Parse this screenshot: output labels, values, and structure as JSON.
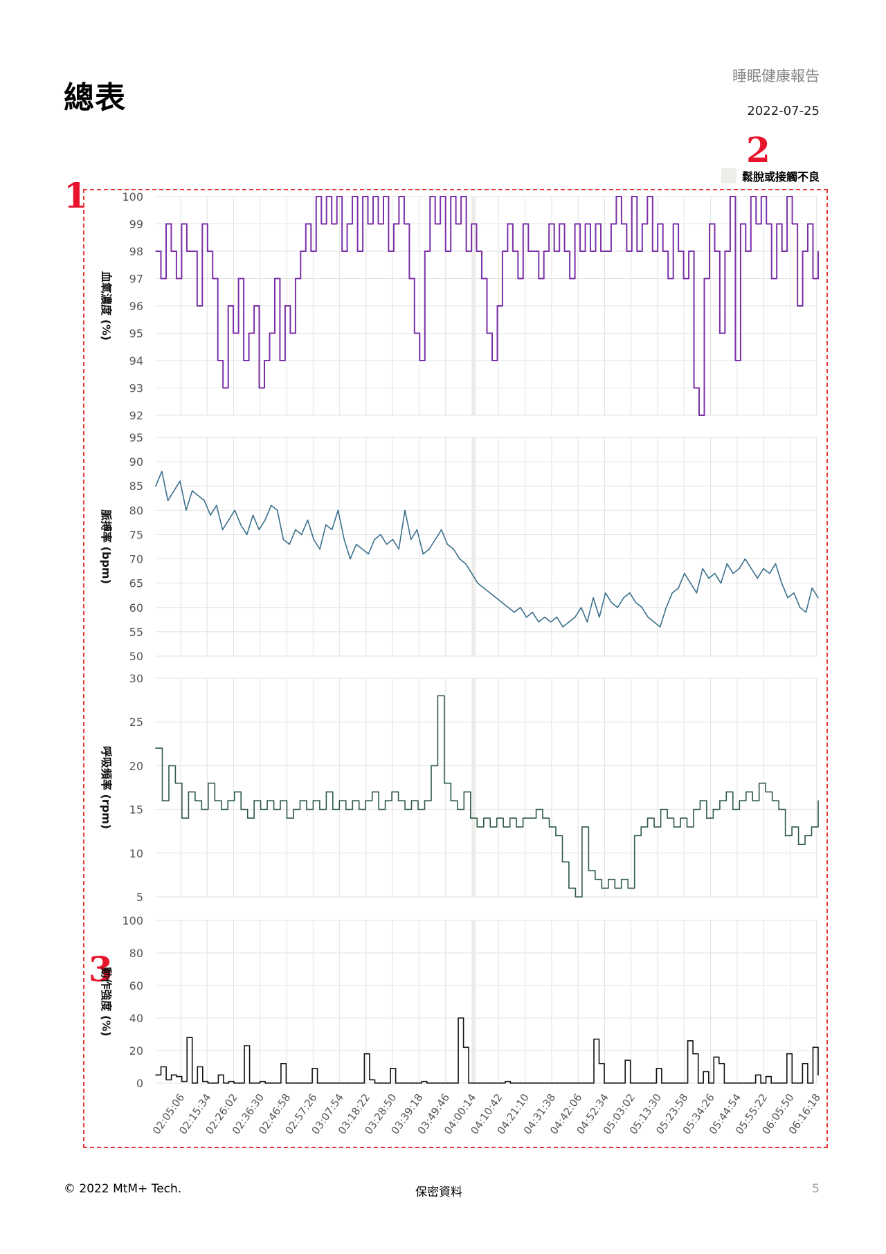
{
  "header": {
    "title": "總表",
    "report_name": "睡眠健康報告",
    "date": "2022-07-25"
  },
  "markers": [
    "1",
    "2",
    "3"
  ],
  "legend": {
    "label": "鬆脫或接觸不良",
    "color": "#efedea"
  },
  "colors": {
    "spo2": "#7b2fa8",
    "pulse": "#3a6f8a",
    "resp": "#2d5a45",
    "motion": "#111111",
    "frame": "#e53935",
    "marker": "#e8142c"
  },
  "footer": {
    "copyright": "© 2022 MtM+ Tech.",
    "confidential": "保密資料",
    "page_number": "5"
  },
  "chart_data": [
    {
      "type": "line",
      "ylabel": "血氧濃度 (%)",
      "ylim": [
        92,
        100
      ],
      "yticks": [
        92,
        93,
        94,
        95,
        96,
        97,
        98,
        99,
        100
      ],
      "series": [
        {
          "values": [
            98,
            97,
            99,
            98,
            97,
            99,
            98,
            98,
            96,
            99,
            98,
            97,
            94,
            93,
            96,
            95,
            97,
            94,
            95,
            96,
            93,
            94,
            95,
            97,
            94,
            96,
            95,
            97,
            98,
            99,
            98,
            100,
            99,
            100,
            99,
            100,
            98,
            99,
            100,
            98,
            100,
            99,
            100,
            99,
            100,
            98,
            99,
            100,
            99,
            97,
            95,
            94,
            98,
            100,
            99,
            100,
            98,
            100,
            99,
            100,
            98,
            99,
            98,
            97,
            95,
            94,
            96,
            98,
            99,
            98,
            97,
            99,
            98,
            98,
            97,
            98,
            99,
            98,
            99,
            98,
            97,
            99,
            98,
            99,
            98,
            99,
            98,
            98,
            99,
            100,
            99,
            98,
            100,
            98,
            99,
            100,
            98,
            99,
            98,
            97,
            99,
            98,
            97,
            98,
            93,
            92,
            97,
            99,
            98,
            95,
            98,
            100,
            94,
            99,
            98,
            100,
            99,
            100,
            99,
            97,
            99,
            98,
            100,
            99,
            96,
            98,
            99,
            97,
            98
          ]
        }
      ]
    },
    {
      "type": "line",
      "ylabel": "脈搏率 (bpm)",
      "ylim": [
        50,
        95
      ],
      "yticks": [
        50,
        55,
        60,
        65,
        70,
        75,
        80,
        85,
        90,
        95
      ],
      "series": [
        {
          "values": [
            85,
            88,
            82,
            84,
            86,
            80,
            84,
            83,
            82,
            79,
            81,
            76,
            78,
            80,
            77,
            75,
            79,
            76,
            78,
            81,
            80,
            74,
            73,
            76,
            75,
            78,
            74,
            72,
            77,
            76,
            80,
            74,
            70,
            73,
            72,
            71,
            74,
            75,
            73,
            74,
            72,
            80,
            74,
            76,
            71,
            72,
            74,
            76,
            73,
            72,
            70,
            69,
            67,
            65,
            64,
            63,
            62,
            61,
            60,
            59,
            60,
            58,
            59,
            57,
            58,
            57,
            58,
            56,
            57,
            58,
            60,
            57,
            62,
            58,
            63,
            61,
            60,
            62,
            63,
            61,
            60,
            58,
            57,
            56,
            60,
            63,
            64,
            67,
            65,
            63,
            68,
            66,
            67,
            65,
            69,
            67,
            68,
            70,
            68,
            66,
            68,
            67,
            69,
            65,
            62,
            63,
            60,
            59,
            64,
            62
          ]
        }
      ]
    },
    {
      "type": "line",
      "ylabel": "呼吸頻率 (rpm)",
      "ylim": [
        5,
        30
      ],
      "yticks": [
        5,
        10,
        15,
        20,
        25,
        30
      ],
      "series": [
        {
          "values": [
            22,
            16,
            20,
            18,
            14,
            17,
            16,
            15,
            18,
            16,
            15,
            16,
            17,
            15,
            14,
            16,
            15,
            16,
            15,
            16,
            14,
            15,
            16,
            15,
            16,
            15,
            17,
            15,
            16,
            15,
            16,
            15,
            16,
            17,
            15,
            16,
            17,
            16,
            15,
            16,
            15,
            16,
            20,
            28,
            18,
            16,
            15,
            17,
            14,
            13,
            14,
            13,
            14,
            13,
            14,
            13,
            14,
            14,
            15,
            14,
            13,
            12,
            9,
            6,
            5,
            13,
            8,
            7,
            6,
            7,
            6,
            7,
            6,
            12,
            13,
            14,
            13,
            15,
            14,
            13,
            14,
            13,
            15,
            16,
            14,
            15,
            16,
            17,
            15,
            16,
            17,
            16,
            18,
            17,
            16,
            15,
            12,
            13,
            11,
            12,
            13,
            16
          ]
        }
      ]
    },
    {
      "type": "line",
      "ylabel": "動作強度 (%)",
      "ylim": [
        0,
        100
      ],
      "yticks": [
        0,
        20,
        40,
        60,
        80,
        100
      ],
      "xlabels": [
        "02:05:06",
        "02:15:34",
        "02:26:02",
        "02:36:30",
        "02:46:58",
        "02:57:26",
        "03:07:54",
        "03:18:22",
        "03:28:50",
        "03:39:18",
        "03:49:46",
        "04:00:14",
        "04:10:42",
        "04:21:10",
        "04:31:38",
        "04:42:06",
        "04:52:34",
        "05:03:02",
        "05:13:30",
        "05:23:58",
        "05:34:26",
        "05:44:54",
        "05:55:22",
        "06:05:50",
        "06:16:18"
      ],
      "series": [
        {
          "values": [
            5,
            10,
            2,
            5,
            4,
            1,
            28,
            0,
            10,
            1,
            0,
            0,
            5,
            0,
            1,
            0,
            0,
            23,
            0,
            0,
            1,
            0,
            0,
            0,
            12,
            0,
            0,
            0,
            0,
            0,
            9,
            0,
            0,
            0,
            0,
            0,
            0,
            0,
            0,
            0,
            18,
            2,
            0,
            0,
            0,
            9,
            0,
            0,
            0,
            0,
            0,
            1,
            0,
            0,
            0,
            0,
            0,
            0,
            40,
            22,
            0,
            0,
            0,
            0,
            0,
            0,
            0,
            1,
            0,
            0,
            0,
            0,
            0,
            0,
            0,
            0,
            0,
            0,
            0,
            0,
            0,
            0,
            0,
            0,
            27,
            12,
            0,
            0,
            0,
            0,
            14,
            0,
            0,
            0,
            0,
            0,
            9,
            0,
            0,
            0,
            0,
            0,
            26,
            18,
            0,
            7,
            0,
            16,
            12,
            0,
            0,
            0,
            0,
            0,
            0,
            5,
            0,
            4,
            0,
            0,
            0,
            18,
            0,
            0,
            12,
            0,
            22,
            5
          ]
        }
      ]
    }
  ]
}
